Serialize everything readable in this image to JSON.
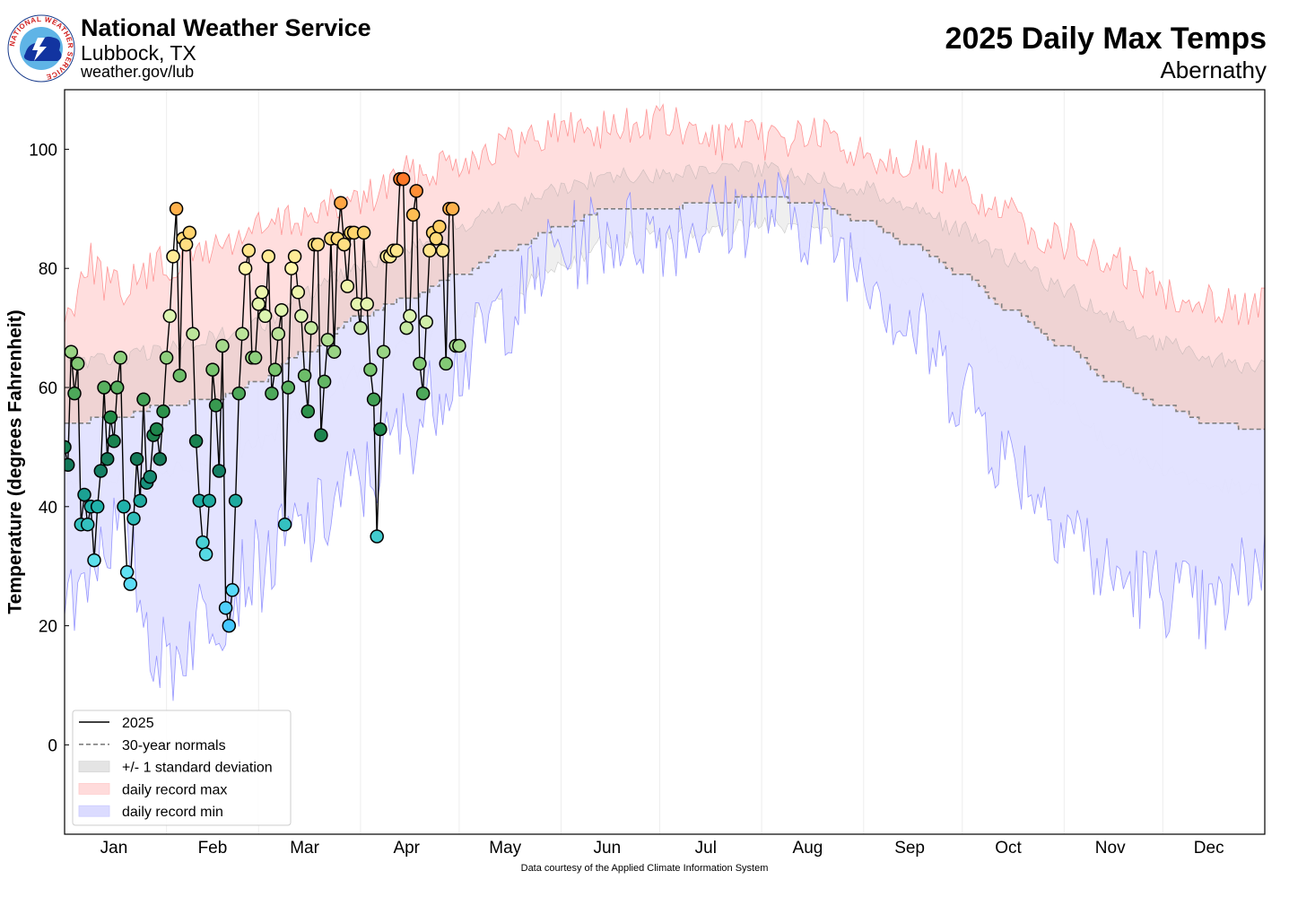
{
  "header": {
    "org_name": "National Weather Service",
    "office": "Lubbock, TX",
    "url": "weather.gov/lub",
    "logo_text": "NATIONAL WEATHER SERVICE"
  },
  "footer": {
    "credit": "Data courtesy of the Applied Climate Information System"
  },
  "chart_data": {
    "type": "line",
    "title": "2025 Daily Max Temps",
    "subtitle": "Abernathy",
    "ylabel": "Temperature (degrees Fahrenheit)",
    "xlabel": "",
    "ylim": [
      -15,
      110
    ],
    "xlim": [
      1,
      366
    ],
    "yticks": [
      0,
      20,
      40,
      60,
      80,
      100
    ],
    "months": [
      {
        "label": "Jan",
        "start": 1,
        "mid": 16
      },
      {
        "label": "Feb",
        "start": 32,
        "mid": 46
      },
      {
        "label": "Mar",
        "start": 60,
        "mid": 74
      },
      {
        "label": "Apr",
        "start": 91,
        "mid": 105
      },
      {
        "label": "May",
        "start": 121,
        "mid": 135
      },
      {
        "label": "Jun",
        "start": 152,
        "mid": 166
      },
      {
        "label": "Jul",
        "start": 182,
        "mid": 196
      },
      {
        "label": "Aug",
        "start": 213,
        "mid": 227
      },
      {
        "label": "Sep",
        "start": 244,
        "mid": 258
      },
      {
        "label": "Oct",
        "start": 274,
        "mid": 288
      },
      {
        "label": "Nov",
        "start": 305,
        "mid": 319
      },
      {
        "label": "Dec",
        "start": 335,
        "mid": 349
      }
    ],
    "legend": {
      "position": "lower-left",
      "entries": [
        {
          "label": "2025",
          "kind": "line",
          "color": "#000000"
        },
        {
          "label": "30-year normals",
          "kind": "dash",
          "color": "#808080"
        },
        {
          "label": "+/- 1 standard deviation",
          "kind": "patch",
          "color": "#d8d8d8"
        },
        {
          "label": "daily record max",
          "kind": "patch",
          "color": "#ffcccc"
        },
        {
          "label": "daily record min",
          "kind": "patch",
          "color": "#ccccff"
        }
      ]
    },
    "colors": {
      "record_max_fill": "#ffdede",
      "record_max_line": "#ff8080",
      "record_min_fill": "#e2e2ff",
      "record_min_line": "#8080ff",
      "std_fill": "#9a9a9a",
      "normal_line": "#808080"
    },
    "normal_max": [
      [
        1,
        54
      ],
      [
        16,
        55
      ],
      [
        32,
        57
      ],
      [
        46,
        58
      ],
      [
        60,
        61
      ],
      [
        74,
        66
      ],
      [
        91,
        72
      ],
      [
        105,
        75
      ],
      [
        121,
        79
      ],
      [
        135,
        83
      ],
      [
        152,
        87
      ],
      [
        166,
        90
      ],
      [
        182,
        90
      ],
      [
        196,
        91
      ],
      [
        213,
        92
      ],
      [
        227,
        91
      ],
      [
        244,
        88
      ],
      [
        258,
        84
      ],
      [
        274,
        79
      ],
      [
        288,
        73
      ],
      [
        305,
        67
      ],
      [
        319,
        61
      ],
      [
        335,
        57
      ],
      [
        349,
        54
      ],
      [
        366,
        53
      ]
    ],
    "record_max_env": [
      [
        1,
        75
      ],
      [
        8,
        85
      ],
      [
        16,
        80
      ],
      [
        32,
        84
      ],
      [
        46,
        87
      ],
      [
        60,
        90
      ],
      [
        74,
        92
      ],
      [
        91,
        95
      ],
      [
        105,
        99
      ],
      [
        121,
        102
      ],
      [
        135,
        104
      ],
      [
        152,
        107
      ],
      [
        166,
        107
      ],
      [
        182,
        108
      ],
      [
        196,
        105
      ],
      [
        213,
        105
      ],
      [
        227,
        106
      ],
      [
        244,
        103
      ],
      [
        258,
        102
      ],
      [
        274,
        97
      ],
      [
        288,
        92
      ],
      [
        305,
        88
      ],
      [
        319,
        84
      ],
      [
        335,
        80
      ],
      [
        349,
        78
      ],
      [
        366,
        77
      ]
    ],
    "record_min_env": [
      [
        1,
        16
      ],
      [
        16,
        28
      ],
      [
        32,
        6
      ],
      [
        46,
        15
      ],
      [
        60,
        22
      ],
      [
        74,
        28
      ],
      [
        91,
        36
      ],
      [
        105,
        45
      ],
      [
        121,
        56
      ],
      [
        135,
        65
      ],
      [
        152,
        75
      ],
      [
        166,
        78
      ],
      [
        182,
        78
      ],
      [
        196,
        80
      ],
      [
        213,
        82
      ],
      [
        227,
        80
      ],
      [
        244,
        73
      ],
      [
        258,
        62
      ],
      [
        274,
        52
      ],
      [
        288,
        40
      ],
      [
        305,
        30
      ],
      [
        319,
        20
      ],
      [
        335,
        18
      ],
      [
        349,
        14
      ],
      [
        366,
        23
      ]
    ],
    "std_upper_env": [
      [
        1,
        66
      ],
      [
        16,
        66
      ],
      [
        32,
        68
      ],
      [
        46,
        70
      ],
      [
        60,
        72
      ],
      [
        74,
        77
      ],
      [
        91,
        82
      ],
      [
        105,
        85
      ],
      [
        121,
        89
      ],
      [
        135,
        92
      ],
      [
        152,
        95
      ],
      [
        166,
        97
      ],
      [
        182,
        97
      ],
      [
        196,
        98
      ],
      [
        213,
        98
      ],
      [
        227,
        97
      ],
      [
        244,
        95
      ],
      [
        258,
        92
      ],
      [
        274,
        88
      ],
      [
        288,
        83
      ],
      [
        305,
        78
      ],
      [
        319,
        73
      ],
      [
        335,
        69
      ],
      [
        349,
        66
      ],
      [
        366,
        65
      ]
    ],
    "std_lower_env": [
      [
        1,
        42
      ],
      [
        16,
        43
      ],
      [
        32,
        45
      ],
      [
        46,
        46
      ],
      [
        60,
        49
      ],
      [
        74,
        54
      ],
      [
        91,
        61
      ],
      [
        105,
        65
      ],
      [
        121,
        70
      ],
      [
        135,
        74
      ],
      [
        152,
        79
      ],
      [
        166,
        83
      ],
      [
        182,
        84
      ],
      [
        196,
        85
      ],
      [
        213,
        86
      ],
      [
        227,
        85
      ],
      [
        244,
        81
      ],
      [
        258,
        76
      ],
      [
        274,
        70
      ],
      [
        288,
        63
      ],
      [
        305,
        56
      ],
      [
        319,
        49
      ],
      [
        335,
        45
      ],
      [
        349,
        42
      ],
      [
        366,
        41
      ]
    ],
    "series": [
      {
        "name": "2025",
        "x": [
          1,
          2,
          3,
          4,
          5,
          6,
          7,
          8,
          9,
          10,
          11,
          12,
          13,
          14,
          15,
          16,
          17,
          18,
          19,
          20,
          21,
          22,
          23,
          24,
          25,
          26,
          27,
          28,
          29,
          30,
          31,
          32,
          33,
          34,
          35,
          36,
          37,
          38,
          39,
          40,
          41,
          42,
          43,
          44,
          45,
          46,
          47,
          48,
          49,
          50,
          51,
          52,
          53,
          54,
          55,
          56,
          57,
          58,
          59,
          60,
          61,
          62,
          63,
          64,
          65,
          66,
          67,
          68,
          69,
          70,
          71,
          72,
          73,
          74,
          75,
          76,
          77,
          78,
          79,
          80,
          81,
          82,
          83,
          84,
          85,
          86,
          87,
          88,
          89,
          90,
          91,
          92,
          93,
          94,
          95,
          96,
          97,
          98,
          99,
          100,
          101,
          102,
          103,
          104,
          105,
          106,
          107,
          108,
          109,
          110,
          111,
          112,
          113,
          114,
          115,
          116,
          117,
          118,
          119,
          120,
          121
        ],
        "y": [
          50,
          47,
          66,
          59,
          64,
          37,
          42,
          37,
          40,
          31,
          40,
          46,
          60,
          48,
          55,
          51,
          60,
          65,
          40,
          29,
          27,
          38,
          48,
          41,
          58,
          44,
          45,
          52,
          53,
          48,
          56,
          65,
          72,
          82,
          90,
          62,
          85,
          84,
          86,
          69,
          51,
          41,
          34,
          32,
          41,
          63,
          57,
          46,
          67,
          23,
          20,
          26,
          41,
          59,
          69,
          80,
          83,
          65,
          65,
          74,
          76,
          72,
          82,
          59,
          63,
          69,
          73,
          37,
          60,
          80,
          82,
          76,
          72,
          62,
          56,
          70,
          84,
          84,
          52,
          61,
          68,
          85,
          66,
          85,
          91,
          84,
          77,
          86,
          86,
          74,
          70,
          86,
          74,
          63,
          58,
          35,
          53,
          66,
          82,
          82,
          83,
          83,
          95,
          95,
          70,
          72,
          89,
          93,
          64,
          59,
          71,
          83,
          86,
          85,
          87,
          83,
          64,
          90,
          90,
          67,
          67
        ]
      }
    ]
  }
}
